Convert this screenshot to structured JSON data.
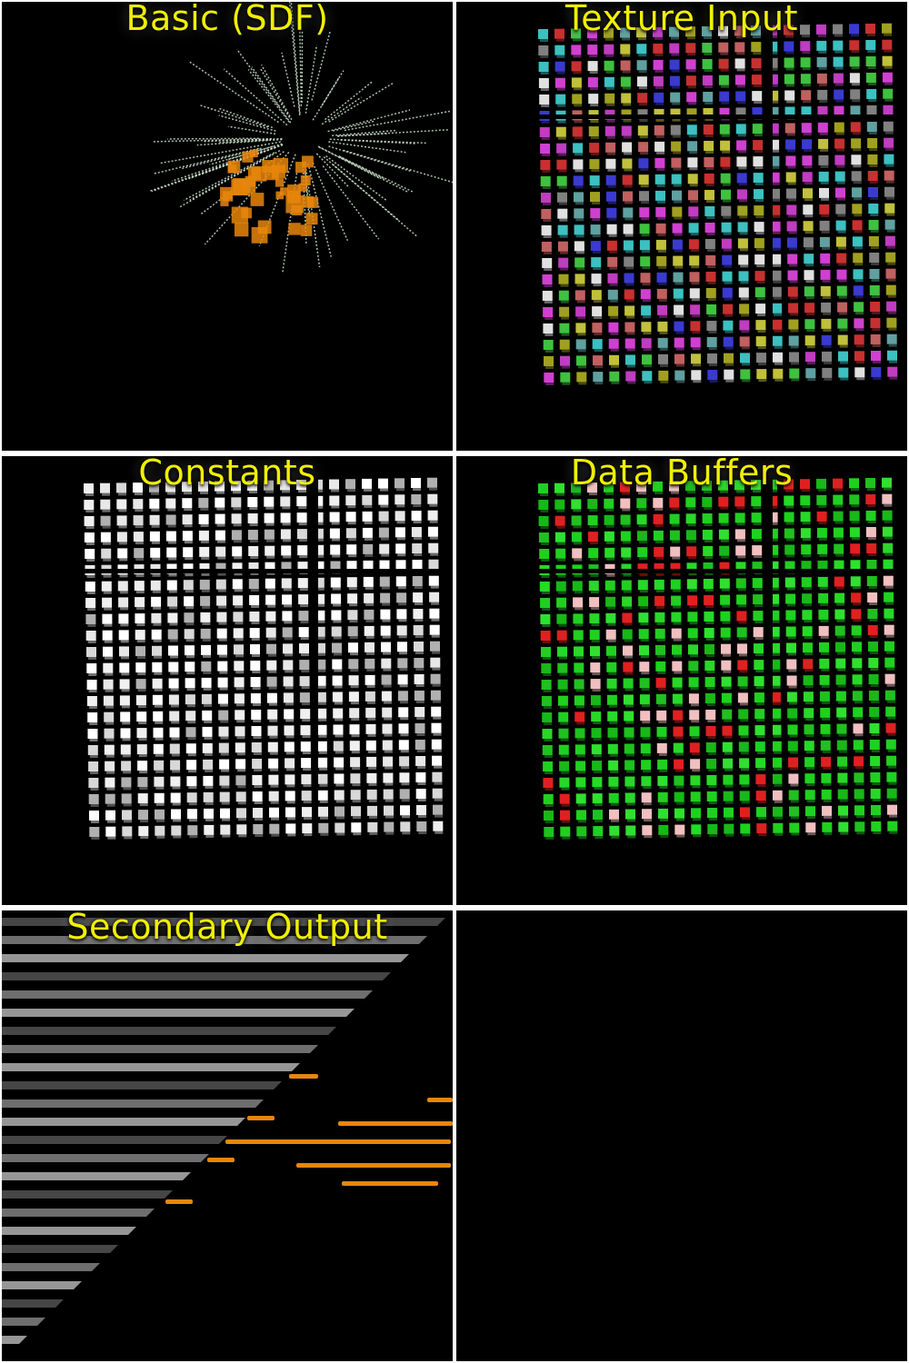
{
  "panels": [
    {
      "id": "basic-sdf",
      "label": "Basic (SDF)",
      "style": "burst",
      "primary": "#e8860a",
      "secondary": "#d8f0d8"
    },
    {
      "id": "texture-input",
      "label": "Texture Input",
      "style": "cubes",
      "palette": [
        "#c03cc0",
        "#3cc0c0",
        "#c0c03c",
        "#c83030",
        "#3a3ad0",
        "#40c040",
        "#c06060",
        "#808080",
        "#d040d0",
        "#e0e0e0",
        "#60a0a0",
        "#a0a020"
      ]
    },
    {
      "id": "constants",
      "label": "Constants",
      "style": "cubes",
      "palette": [
        "#ffffff",
        "#f0f0f0",
        "#d8d8d8",
        "#b0b0b0",
        "#ffffff",
        "#e8e8e8"
      ]
    },
    {
      "id": "data-buffers",
      "label": "Data Buffers",
      "style": "cubes",
      "palette": [
        "#20d020",
        "#18b818",
        "#30e030",
        "#20d020",
        "#e02020",
        "#20c020",
        "#28d828",
        "#f0c0c0"
      ]
    },
    {
      "id": "secondary-output",
      "label": "Secondary Output",
      "style": "stripes",
      "stripe_color": "#c8c8c8",
      "dash_color": "#e8860a"
    },
    {
      "id": "empty",
      "label": "",
      "style": "empty"
    }
  ]
}
